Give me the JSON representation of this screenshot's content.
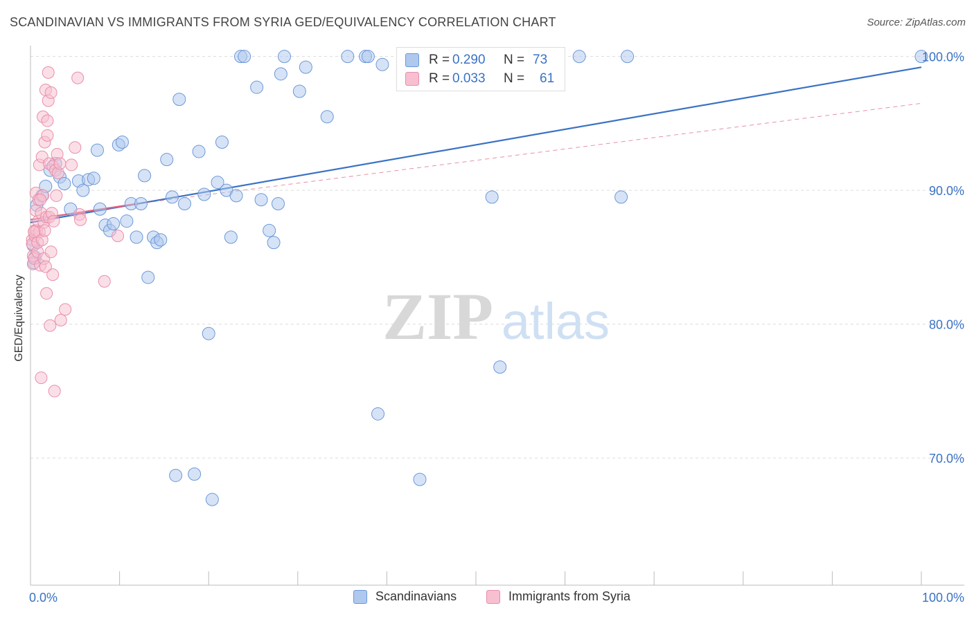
{
  "header": {
    "title": "SCANDINAVIAN VS IMMIGRANTS FROM SYRIA GED/EQUIVALENCY CORRELATION CHART",
    "source": "Source: ZipAtlas.com"
  },
  "watermark": {
    "zip": "ZIP",
    "atlas": "atlas"
  },
  "legend": {
    "rows": [
      {
        "label": "R = ",
        "r": "0.290",
        "n_label": "N = ",
        "n": "73",
        "fill": "#aec8ee",
        "stroke": "#6c98d8"
      },
      {
        "label": "R = ",
        "r": "0.033",
        "n_label": "N = ",
        "n": "61",
        "fill": "#f7bfd0",
        "stroke": "#e88fab"
      }
    ]
  },
  "bottom_legend": {
    "items": [
      {
        "label": "Scandinavians",
        "fill": "#aec8ee",
        "stroke": "#6c98d8"
      },
      {
        "label": "Immigrants from Syria",
        "fill": "#f7bfd0",
        "stroke": "#e88fab"
      }
    ]
  },
  "chart_data": {
    "type": "scatter",
    "title": "SCANDINAVIAN VS IMMIGRANTS FROM SYRIA GED/EQUIVALENCY CORRELATION CHART",
    "xlabel": "",
    "ylabel": "GED/Equivalency",
    "xlim": [
      0,
      100
    ],
    "ylim": [
      60.5,
      100.5
    ],
    "x_tick_labels": [
      "0.0%",
      "100.0%"
    ],
    "y_ticks": [
      70,
      80,
      90,
      100
    ],
    "y_tick_labels": [
      "70.0%",
      "80.0%",
      "90.0%",
      "100.0%"
    ],
    "grid": "horizontal dashed",
    "legend_position": "top-center",
    "colors": {
      "blue": "#3a72c4",
      "blue_fill": "#aec8ee",
      "pink": "#e0607f",
      "pink_fill": "#f7bfd0"
    },
    "series": [
      {
        "name": "Scandinavians",
        "color": "#6c98d8",
        "points": [
          [
            0.5,
            85.0
          ],
          [
            0.7,
            88.9
          ],
          [
            1.3,
            89.6
          ],
          [
            1.7,
            90.3
          ],
          [
            2.2,
            91.5
          ],
          [
            2.8,
            92.0
          ],
          [
            3.3,
            91.0
          ],
          [
            3.8,
            90.5
          ],
          [
            4.5,
            88.6
          ],
          [
            5.4,
            90.7
          ],
          [
            5.9,
            90.0
          ],
          [
            6.5,
            90.8
          ],
          [
            7.1,
            90.9
          ],
          [
            7.5,
            93.0
          ],
          [
            7.8,
            88.6
          ],
          [
            8.4,
            87.4
          ],
          [
            8.9,
            87.0
          ],
          [
            9.3,
            87.5
          ],
          [
            9.9,
            93.4
          ],
          [
            10.3,
            93.6
          ],
          [
            10.8,
            87.7
          ],
          [
            11.3,
            89.0
          ],
          [
            11.9,
            86.5
          ],
          [
            12.4,
            89.0
          ],
          [
            12.8,
            91.1
          ],
          [
            13.2,
            83.5
          ],
          [
            13.8,
            86.5
          ],
          [
            14.2,
            86.1
          ],
          [
            14.6,
            86.3
          ],
          [
            15.3,
            92.3
          ],
          [
            15.9,
            89.5
          ],
          [
            16.3,
            68.7
          ],
          [
            16.7,
            96.8
          ],
          [
            17.3,
            89.0
          ],
          [
            18.4,
            68.8
          ],
          [
            18.9,
            92.9
          ],
          [
            19.5,
            89.7
          ],
          [
            20.0,
            79.3
          ],
          [
            20.4,
            66.9
          ],
          [
            21.0,
            90.6
          ],
          [
            21.5,
            93.6
          ],
          [
            22.0,
            90.0
          ],
          [
            22.5,
            86.5
          ],
          [
            23.1,
            89.6
          ],
          [
            23.6,
            100.0
          ],
          [
            24.0,
            100.0
          ],
          [
            25.4,
            97.7
          ],
          [
            25.9,
            89.3
          ],
          [
            26.8,
            87.0
          ],
          [
            27.3,
            86.1
          ],
          [
            27.8,
            89.0
          ],
          [
            28.1,
            98.7
          ],
          [
            28.5,
            100.0
          ],
          [
            30.2,
            97.4
          ],
          [
            30.9,
            99.2
          ],
          [
            33.3,
            95.5
          ],
          [
            35.6,
            100.0
          ],
          [
            37.6,
            100.0
          ],
          [
            37.9,
            100.0
          ],
          [
            39.0,
            73.3
          ],
          [
            39.5,
            99.4
          ],
          [
            42.6,
            100.0
          ],
          [
            43.7,
            68.4
          ],
          [
            47.2,
            100.0
          ],
          [
            51.8,
            89.5
          ],
          [
            52.7,
            76.8
          ],
          [
            58.4,
            100.0
          ],
          [
            61.6,
            100.0
          ],
          [
            66.3,
            89.5
          ],
          [
            67.0,
            100.0
          ],
          [
            100.0,
            100.0
          ],
          [
            0.4,
            84.6
          ],
          [
            0.3,
            85.9
          ]
        ]
      },
      {
        "name": "Immigrants from Syria",
        "color": "#e88fab",
        "points": [
          [
            0.2,
            86.3
          ],
          [
            0.2,
            86.0
          ],
          [
            0.3,
            84.5
          ],
          [
            0.3,
            85.1
          ],
          [
            0.4,
            84.9
          ],
          [
            0.5,
            86.6
          ],
          [
            0.5,
            87.0
          ],
          [
            0.6,
            89.8
          ],
          [
            0.6,
            88.5
          ],
          [
            0.7,
            87.0
          ],
          [
            0.8,
            85.4
          ],
          [
            0.8,
            86.1
          ],
          [
            0.9,
            89.3
          ],
          [
            0.9,
            87.7
          ],
          [
            1.0,
            86.9
          ],
          [
            1.0,
            91.9
          ],
          [
            1.1,
            84.4
          ],
          [
            1.2,
            88.3
          ],
          [
            1.2,
            76.0
          ],
          [
            1.3,
            92.5
          ],
          [
            1.3,
            86.3
          ],
          [
            1.4,
            95.5
          ],
          [
            1.4,
            89.6
          ],
          [
            1.5,
            87.6
          ],
          [
            1.5,
            84.9
          ],
          [
            1.6,
            93.6
          ],
          [
            1.6,
            87.0
          ],
          [
            1.7,
            97.5
          ],
          [
            1.7,
            84.3
          ],
          [
            1.8,
            88.0
          ],
          [
            1.8,
            82.3
          ],
          [
            1.9,
            95.2
          ],
          [
            1.9,
            94.1
          ],
          [
            2.0,
            96.7
          ],
          [
            2.0,
            98.8
          ],
          [
            2.1,
            92.0
          ],
          [
            2.1,
            88.0
          ],
          [
            2.2,
            79.9
          ],
          [
            2.3,
            97.3
          ],
          [
            2.3,
            85.4
          ],
          [
            2.4,
            88.3
          ],
          [
            2.5,
            91.8
          ],
          [
            2.5,
            83.7
          ],
          [
            2.6,
            87.7
          ],
          [
            2.7,
            75.0
          ],
          [
            2.8,
            91.5
          ],
          [
            2.9,
            89.6
          ],
          [
            3.0,
            92.7
          ],
          [
            3.1,
            91.3
          ],
          [
            3.3,
            92.0
          ],
          [
            3.4,
            80.3
          ],
          [
            3.9,
            81.1
          ],
          [
            4.6,
            91.9
          ],
          [
            5.0,
            93.2
          ],
          [
            5.3,
            98.4
          ],
          [
            5.5,
            88.2
          ],
          [
            5.6,
            87.8
          ],
          [
            8.3,
            83.2
          ],
          [
            9.8,
            86.6
          ],
          [
            0.4,
            86.9
          ],
          [
            1.1,
            89.3
          ]
        ]
      }
    ],
    "trendlines": [
      {
        "series": "Scandinavians",
        "x": [
          0,
          100
        ],
        "y": [
          87.6,
          99.2
        ],
        "style": "solid"
      },
      {
        "series": "Immigrants from Syria",
        "x": [
          0,
          12
        ],
        "y": [
          87.8,
          89.0
        ],
        "style": "solid"
      },
      {
        "series": "Immigrants from Syria",
        "x": [
          12,
          100
        ],
        "y": [
          89.0,
          96.5
        ],
        "style": "dashed"
      }
    ]
  }
}
